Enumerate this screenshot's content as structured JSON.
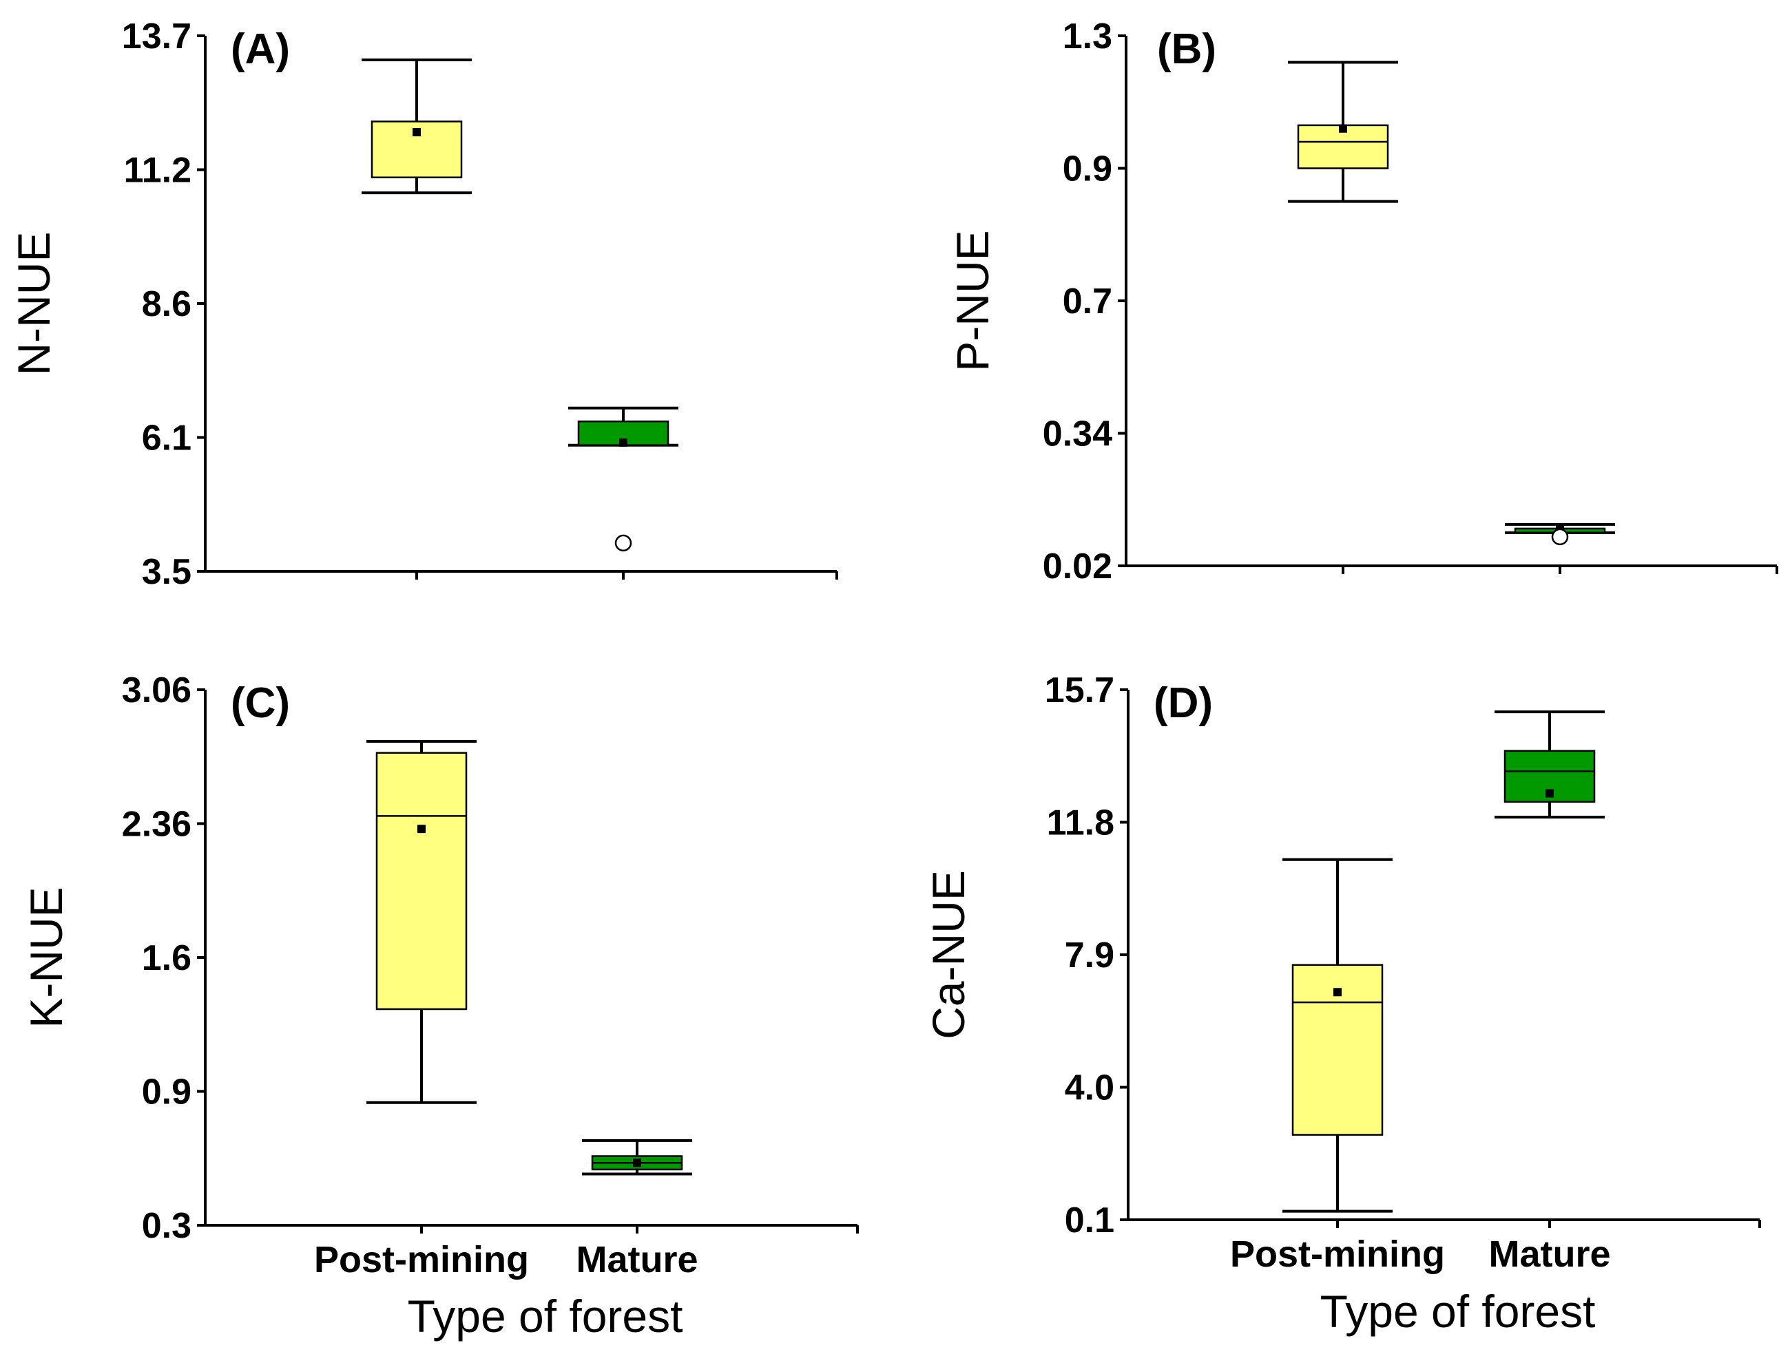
{
  "chart_data": [
    {
      "type": "box",
      "panel_label": "(A)",
      "ylabel": "N-NUE",
      "xlabel": "",
      "yticks": [
        "13.7",
        "11.2",
        "8.6",
        "6.1",
        "3.5"
      ],
      "ylim": [
        3.5,
        13.7
      ],
      "categories": [
        "Post-mining",
        "Mature"
      ],
      "colors": [
        "#ffff80",
        "#009900"
      ],
      "boxes": [
        {
          "category": "Post-mining",
          "min": 10.75,
          "q1": 11.05,
          "median": 11.05,
          "q3": 12.1,
          "max": 13.25,
          "mean": 11.9,
          "outliers": []
        },
        {
          "category": "Mature",
          "min": 5.95,
          "q1": 5.95,
          "median": 5.95,
          "q3": 6.4,
          "max": 6.65,
          "mean": 6.0,
          "outliers": [
            4.05
          ]
        }
      ]
    },
    {
      "type": "box",
      "panel_label": "(B)",
      "ylabel": "P-NUE",
      "xlabel": "",
      "yticks": [
        "1.3",
        "0.9",
        "0.7",
        "0.34",
        "0.02"
      ],
      "ylim": [
        0.02,
        1.3
      ],
      "categories": [
        "Post-mining",
        "Mature"
      ],
      "colors": [
        "#ffff80",
        "#009900"
      ],
      "boxes": [
        {
          "category": "Post-mining",
          "min": 0.85,
          "q1": 0.9,
          "median": 0.98,
          "q3": 1.03,
          "max": 1.22,
          "mean": 1.02,
          "outliers": []
        },
        {
          "category": "Mature",
          "min": 0.1,
          "q1": 0.1,
          "median": 0.1,
          "q3": 0.11,
          "max": 0.12,
          "mean": 0.11,
          "outliers": [
            0.09
          ]
        }
      ]
    },
    {
      "type": "box",
      "panel_label": "(C)",
      "ylabel": "K-NUE",
      "xlabel": "Type of forest",
      "yticks": [
        "3.06",
        "2.36",
        "1.6",
        "0.9",
        "0.3"
      ],
      "ylim": [
        0.3,
        3.06
      ],
      "categories": [
        "Post-mining",
        "Mature"
      ],
      "colors": [
        "#ffff80",
        "#009900"
      ],
      "boxes": [
        {
          "category": "Post-mining",
          "min": 0.85,
          "q1": 1.33,
          "median": 2.4,
          "q3": 2.73,
          "max": 2.79,
          "mean": 2.33,
          "outliers": []
        },
        {
          "category": "Mature",
          "min": 0.53,
          "q1": 0.55,
          "median": 0.58,
          "q3": 0.61,
          "max": 0.68,
          "mean": 0.58,
          "outliers": []
        }
      ]
    },
    {
      "type": "box",
      "panel_label": "(D)",
      "ylabel": "Ca-NUE",
      "xlabel": "Type of forest",
      "yticks": [
        "15.7",
        "11.8",
        "7.9",
        "4.0",
        "0.1"
      ],
      "ylim": [
        0.1,
        15.7
      ],
      "categories": [
        "Post-mining",
        "Mature"
      ],
      "colors": [
        "#ffff80",
        "#009900"
      ],
      "boxes": [
        {
          "category": "Post-mining",
          "min": 0.35,
          "q1": 2.6,
          "median": 6.5,
          "q3": 7.6,
          "max": 10.7,
          "mean": 6.8,
          "outliers": []
        },
        {
          "category": "Mature",
          "min": 11.95,
          "q1": 12.4,
          "median": 13.3,
          "q3": 13.9,
          "max": 15.05,
          "mean": 12.65,
          "outliers": []
        }
      ]
    }
  ]
}
